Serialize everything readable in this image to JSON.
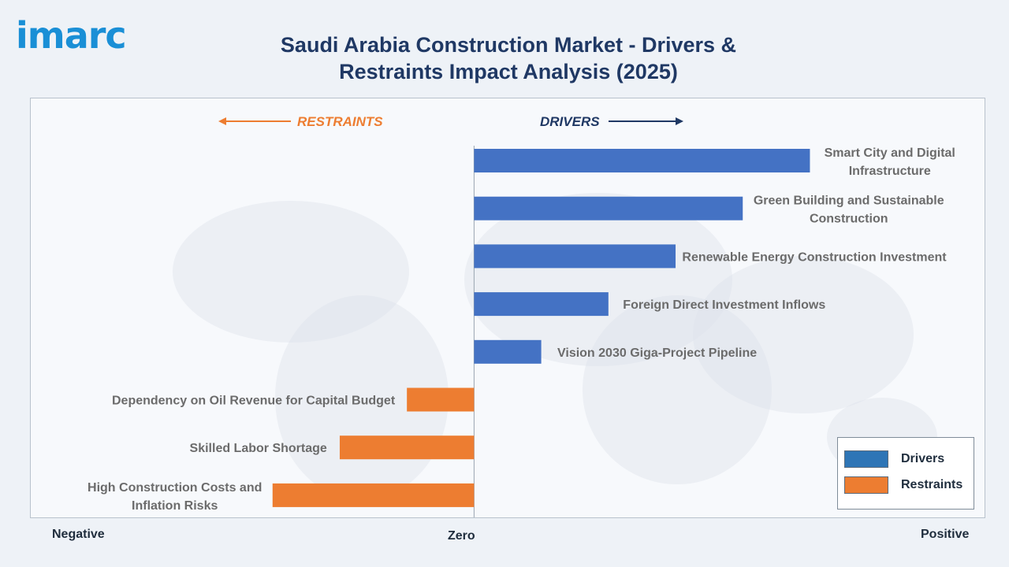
{
  "brand": {
    "logo_text": "imarc"
  },
  "chart_data": {
    "type": "bar",
    "orientation": "horizontal",
    "title": "Saudi Arabia Construction Market - Drivers & Restraints Impact Analysis (2025)",
    "direction_labels": {
      "restraints": "RESTRAINTS",
      "drivers": "DRIVERS"
    },
    "axis_labels": {
      "negative": "Negative",
      "zero": "Zero",
      "positive": "Positive"
    },
    "categories": [
      "Smart City and Digital Infrastructure",
      "Green Building and Sustainable Construction",
      "Renewable Energy Construction Investment",
      "Foreign Direct Investment Inflows",
      "Vision 2030 Giga-Project Pipeline",
      "Dependency on Oil Revenue for Capital Budget",
      "Skilled Labor Shortage",
      "High Construction Costs and Inflation Risks"
    ],
    "series": [
      {
        "name": "Drivers",
        "values": [
          5,
          4,
          3,
          2,
          1,
          null,
          null,
          null
        ],
        "color": "#4472c4"
      },
      {
        "name": "Restraints",
        "values": [
          null,
          null,
          null,
          null,
          null,
          -1,
          -2,
          -3
        ],
        "color": "#ed7d31"
      }
    ],
    "xlim": [
      -6.6,
      7.6
    ],
    "legend": {
      "position": "bottom-right",
      "items": [
        "Drivers",
        "Restraints"
      ]
    },
    "colors": {
      "drivers": "#4472c4",
      "restraints": "#ed7d31",
      "legend_drivers": "#2e75b6"
    }
  }
}
